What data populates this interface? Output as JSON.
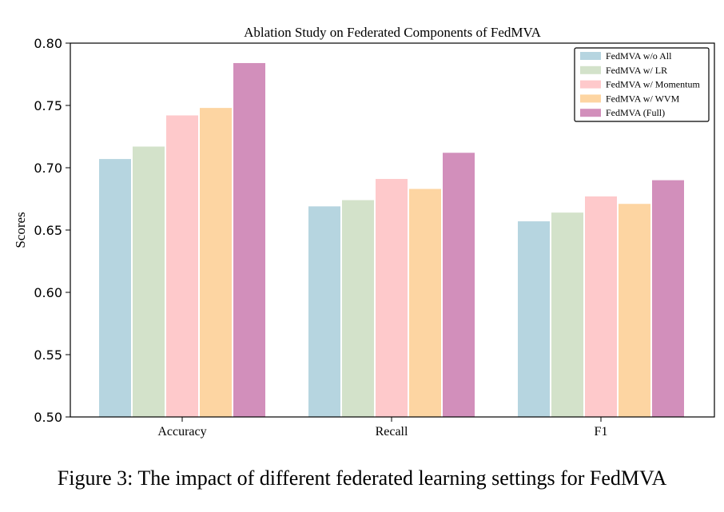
{
  "chart_data": {
    "type": "bar",
    "title": "Ablation Study on Federated Components of FedMVA",
    "xlabel": "",
    "ylabel": "Scores",
    "categories": [
      "Accuracy",
      "Recall",
      "F1"
    ],
    "ylim": [
      0.5,
      0.8
    ],
    "yticks": [
      "0.50",
      "0.55",
      "0.60",
      "0.65",
      "0.70",
      "0.75",
      "0.80"
    ],
    "grid": false,
    "legend_position": "top-right",
    "series": [
      {
        "name": "FedMVA w/o All",
        "color": "#b6d5e0",
        "values": [
          0.707,
          0.669,
          0.657
        ]
      },
      {
        "name": "FedMVA w/ LR",
        "color": "#d3e2ca",
        "values": [
          0.717,
          0.674,
          0.664
        ]
      },
      {
        "name": "FedMVA w/ Momentum",
        "color": "#fec9cb",
        "values": [
          0.742,
          0.691,
          0.677
        ]
      },
      {
        "name": "FedMVA w/ WVM",
        "color": "#fdd5a2",
        "values": [
          0.748,
          0.683,
          0.671
        ]
      },
      {
        "name": "FedMVA (Full)",
        "color": "#d28fbb",
        "values": [
          0.784,
          0.712,
          0.69
        ]
      }
    ]
  },
  "caption": "Figure 3: The impact of different federated learning settings for FedMVA"
}
